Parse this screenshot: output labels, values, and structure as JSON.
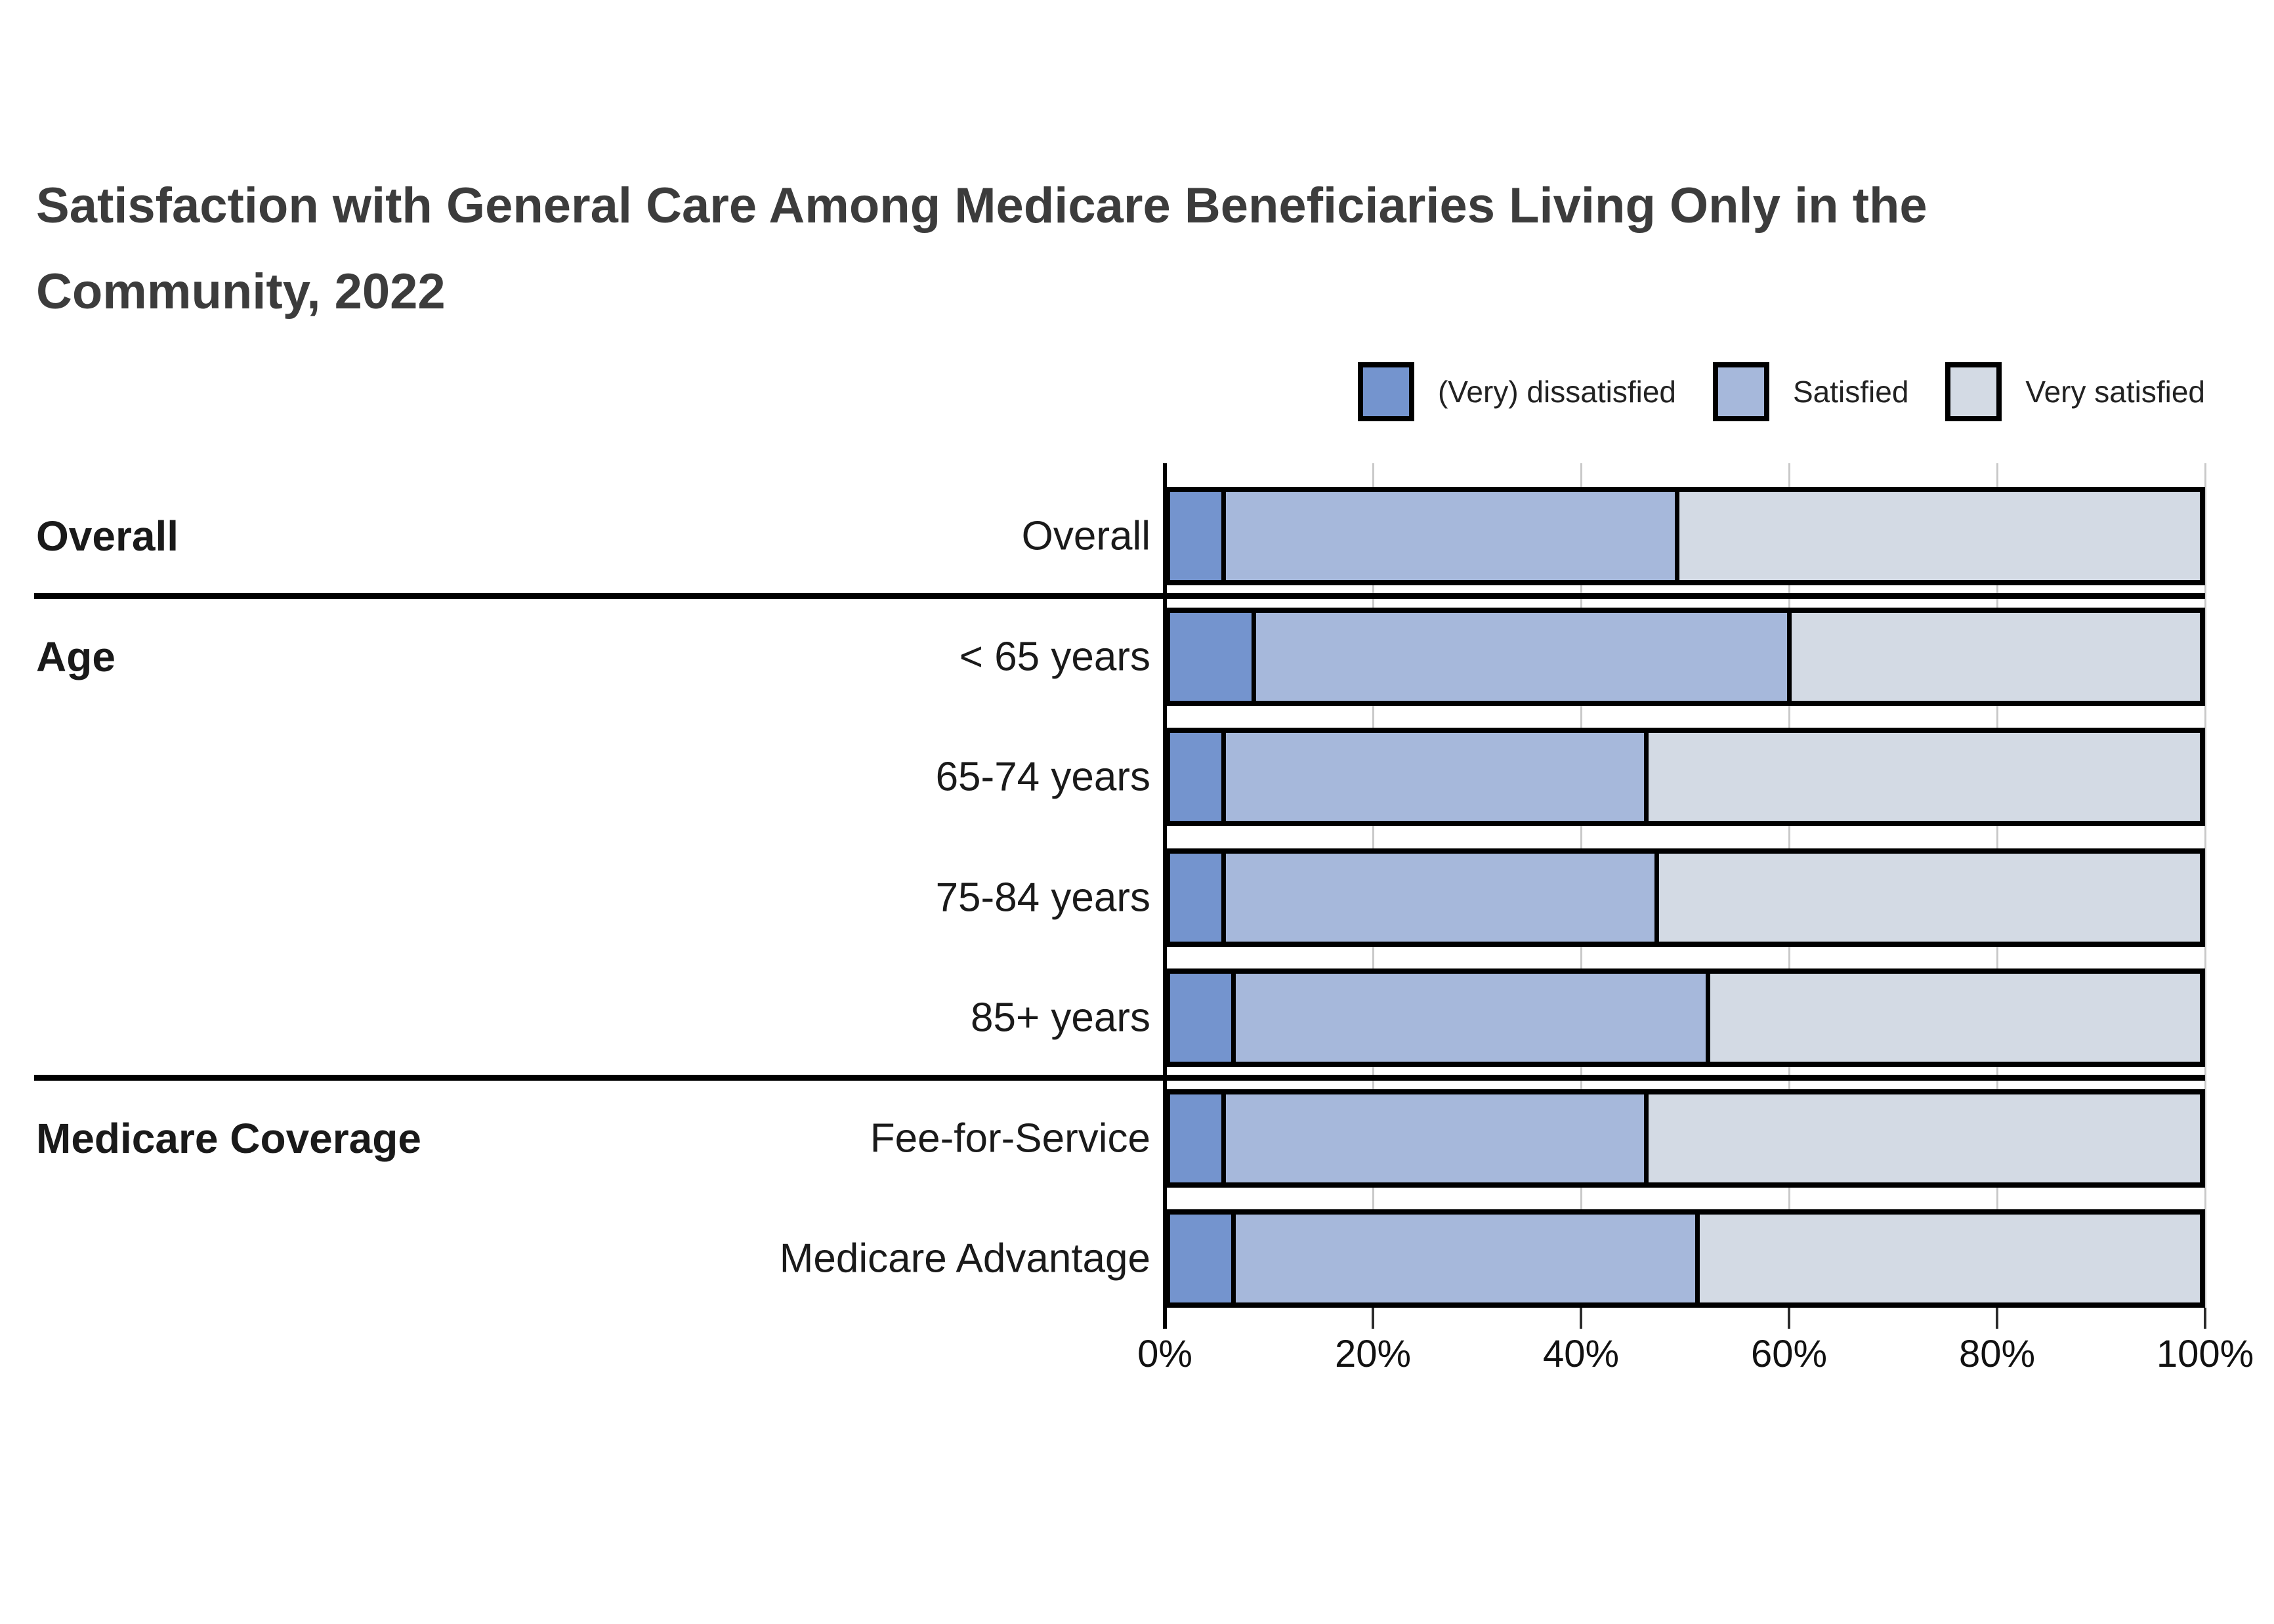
{
  "title": "Satisfaction with General Care Among Medicare Beneficiaries Living Only in the Community, 2022",
  "legend": {
    "items": [
      {
        "label": "(Very) dissatisfied",
        "color": "#7494CE"
      },
      {
        "label": "Satisfied",
        "color": "#A6B8DB"
      },
      {
        "label": "Very satisfied",
        "color": "#D3DAE4"
      }
    ]
  },
  "chart_data": {
    "type": "bar",
    "orientation": "horizontal",
    "stacked": true,
    "title": "Satisfaction with General Care Among Medicare Beneficiaries Living Only in the Community, 2022",
    "categories": [
      "Overall",
      "< 65 years",
      "65-74 years",
      "75-84 years",
      "85+ years",
      "Fee-for-Service",
      "Medicare Advantage"
    ],
    "groups": [
      {
        "label": "Overall",
        "first_row": 0,
        "last_row": 0
      },
      {
        "label": "Age",
        "first_row": 1,
        "last_row": 4
      },
      {
        "label": "Medicare Coverage",
        "first_row": 5,
        "last_row": 6
      }
    ],
    "series": [
      {
        "name": "(Very) dissatisfied",
        "color": "#7494CE",
        "values": [
          5,
          8,
          5,
          5,
          6,
          5,
          6
        ]
      },
      {
        "name": "Satisfied",
        "color": "#A6B8DB",
        "values": [
          44,
          52,
          41,
          42,
          46,
          41,
          45
        ]
      },
      {
        "name": "Very satisfied",
        "color": "#D3DAE4",
        "values": [
          51,
          40,
          54,
          53,
          48,
          54,
          49
        ]
      }
    ],
    "x_ticks": [
      "0%",
      "20%",
      "40%",
      "60%",
      "80%",
      "100%"
    ],
    "xlim": [
      0,
      100
    ],
    "grid": true,
    "legend_position": "top-right"
  }
}
